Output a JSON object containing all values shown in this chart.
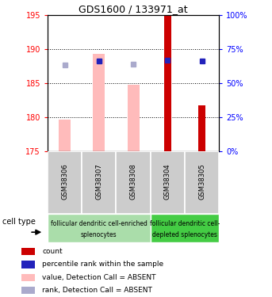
{
  "title": "GDS1600 / 133971_at",
  "samples": [
    "GSM38306",
    "GSM38307",
    "GSM38308",
    "GSM38304",
    "GSM38305"
  ],
  "ylim_left": [
    175,
    195
  ],
  "ylim_right": [
    0,
    100
  ],
  "yticks_left": [
    175,
    180,
    185,
    190,
    195
  ],
  "yticks_right": [
    0,
    25,
    50,
    75,
    100
  ],
  "bar_bottom": 175,
  "pink_bars": {
    "GSM38306": 179.7,
    "GSM38307": 189.3,
    "GSM38308": 184.8,
    "GSM38304": null,
    "GSM38305": null
  },
  "red_bars": {
    "GSM38306": null,
    "GSM38307": null,
    "GSM38308": null,
    "GSM38304": 194.8,
    "GSM38305": 181.8
  },
  "blue_squares": {
    "GSM38306": null,
    "GSM38307": 188.3,
    "GSM38308": null,
    "GSM38304": 188.4,
    "GSM38305": 188.3
  },
  "lightblue_squares": {
    "GSM38306": 187.7,
    "GSM38307": 188.2,
    "GSM38308": 187.8,
    "GSM38304": null,
    "GSM38305": null
  },
  "group1_label_line1": "follicular dendritic cell-enriched",
  "group1_label_line2": "splenocytes",
  "group2_label_line1": "follicular dendritic cell-",
  "group2_label_line2": "depleted splenocytes",
  "cell_type_label": "cell type",
  "legend_labels": [
    "count",
    "percentile rank within the sample",
    "value, Detection Call = ABSENT",
    "rank, Detection Call = ABSENT"
  ],
  "pink_color": "#ffbbbb",
  "red_color": "#cc0000",
  "blue_color": "#2222bb",
  "lightblue_color": "#aaaacc",
  "group1_bg": "#aaddaa",
  "group2_bg": "#44cc44",
  "sample_bg": "#cccccc",
  "bar_width": 0.35,
  "red_bar_width": 0.22
}
